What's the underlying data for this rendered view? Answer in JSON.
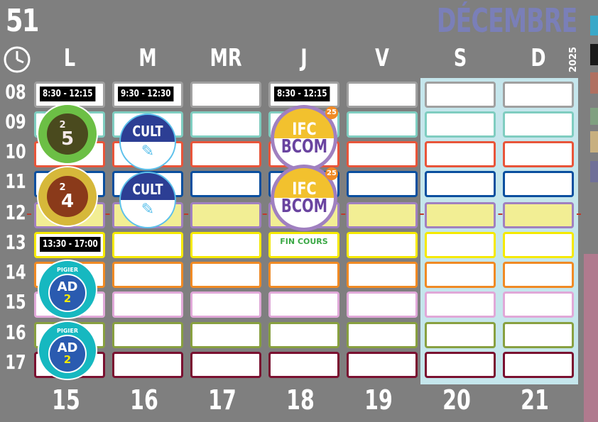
{
  "header": {
    "week": "51",
    "month": "DÉCEMBRE",
    "year": "2025",
    "clock_icon": "clock-icon"
  },
  "days": [
    "L",
    "M",
    "MR",
    "J",
    "V",
    "S",
    "D"
  ],
  "dates": [
    "15",
    "16",
    "17",
    "18",
    "19",
    "20",
    "21"
  ],
  "hours": [
    "08",
    "09",
    "10",
    "11",
    "12",
    "13",
    "14",
    "15",
    "16",
    "17"
  ],
  "row_colors": [
    "#a0a0a0",
    "#7fcdc0",
    "#e8553a",
    "#0a4f9f",
    "#a080c0",
    "#f5e900",
    "#f08a24",
    "#e0a8d8",
    "#88a040",
    "#7a1030"
  ],
  "lunch_fill": "#f2ee94",
  "times": [
    {
      "day": 0,
      "hour": 0,
      "text": "8:30 - 12:15"
    },
    {
      "day": 1,
      "hour": 0,
      "text": "9:30 - 12:30"
    },
    {
      "day": 3,
      "hour": 0,
      "text": "8:30 - 12:15"
    },
    {
      "day": 0,
      "hour": 5,
      "text": "13:30 - 17:00"
    }
  ],
  "notes": {
    "fin_cours": "FIN COURS"
  },
  "badges": {
    "b25": {
      "top": "2",
      "bottom": "5"
    },
    "b24": {
      "top": "2",
      "bottom": "4"
    },
    "cult": "CULT",
    "ifc": {
      "top": "IFC",
      "bottom": "BCOM",
      "tag": "25"
    },
    "ad2": {
      "school": "PIGIER",
      "main": "AD",
      "num": "2"
    }
  },
  "legend_colors": [
    "#3aa8c8",
    "#1a1a1a",
    "#b07060",
    "#80a080",
    "#c8b080",
    "#707098"
  ],
  "side_bar_color": "#b07a8e"
}
